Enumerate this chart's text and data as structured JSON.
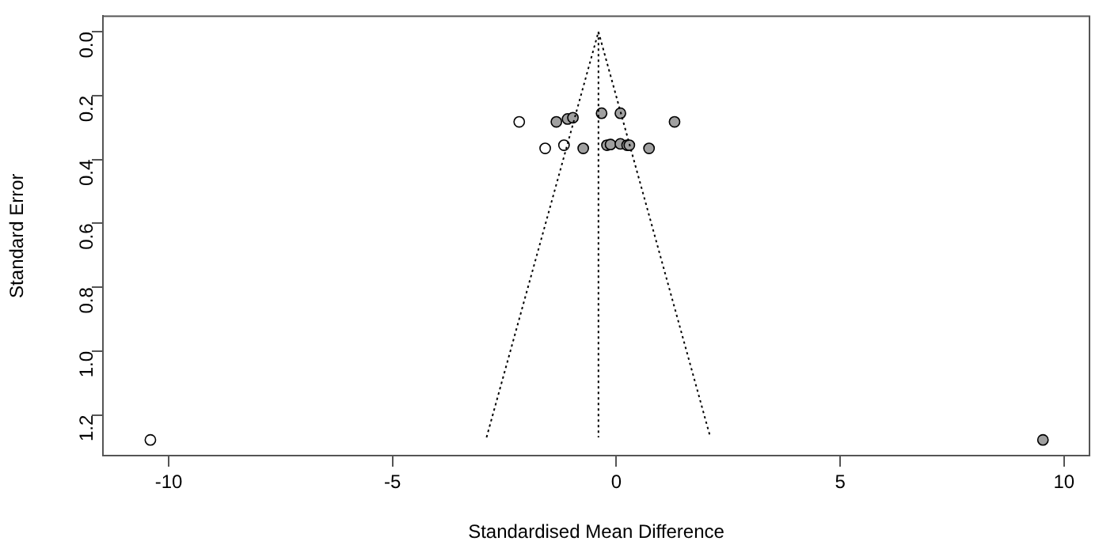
{
  "chart_data": {
    "type": "scatter",
    "xlabel": "Standardised Mean Difference",
    "ylabel": "Standard Error",
    "xlim": [
      -11.47,
      10.57
    ],
    "ylim": [
      1.327,
      -0.049
    ],
    "xticks": [
      -10,
      -5,
      0,
      5,
      10
    ],
    "yticks": [
      {
        "value": 0,
        "label": "0.0"
      },
      0.2,
      0.4,
      0.6,
      0.8,
      {
        "value": 1,
        "label": "1.0"
      },
      1.2
    ],
    "grid": false,
    "legend": false,
    "marker": "circle",
    "series": [
      {
        "type": "line",
        "color": "#000000",
        "line_style": "dotted",
        "marker": "none",
        "x": [
          -2.9,
          -0.4,
          2.1
        ],
        "values": [
          1.27,
          0,
          1.27
        ]
      },
      {
        "type": "line",
        "color": "#000000",
        "line_style": "dotted",
        "marker": "none",
        "x": [
          -0.4,
          -0.4
        ],
        "values": [
          0,
          1.27
        ]
      },
      {
        "color": "#ffffff",
        "x": [
          -2.17,
          -1.59,
          -1.17,
          -10.41
        ],
        "values": [
          0.282,
          0.365,
          0.355,
          1.278
        ]
      },
      {
        "color": "#a0a0a0",
        "x": [
          -1.34,
          -1.09,
          -0.97,
          -0.33,
          0.09,
          1.3,
          -0.74,
          -0.21,
          -0.13,
          0.09,
          0.24,
          0.29,
          0.73,
          9.53
        ],
        "values": [
          0.282,
          0.273,
          0.269,
          0.255,
          0.255,
          0.282,
          0.365,
          0.355,
          0.353,
          0.351,
          0.355,
          0.355,
          0.365,
          1.278
        ]
      }
    ]
  }
}
